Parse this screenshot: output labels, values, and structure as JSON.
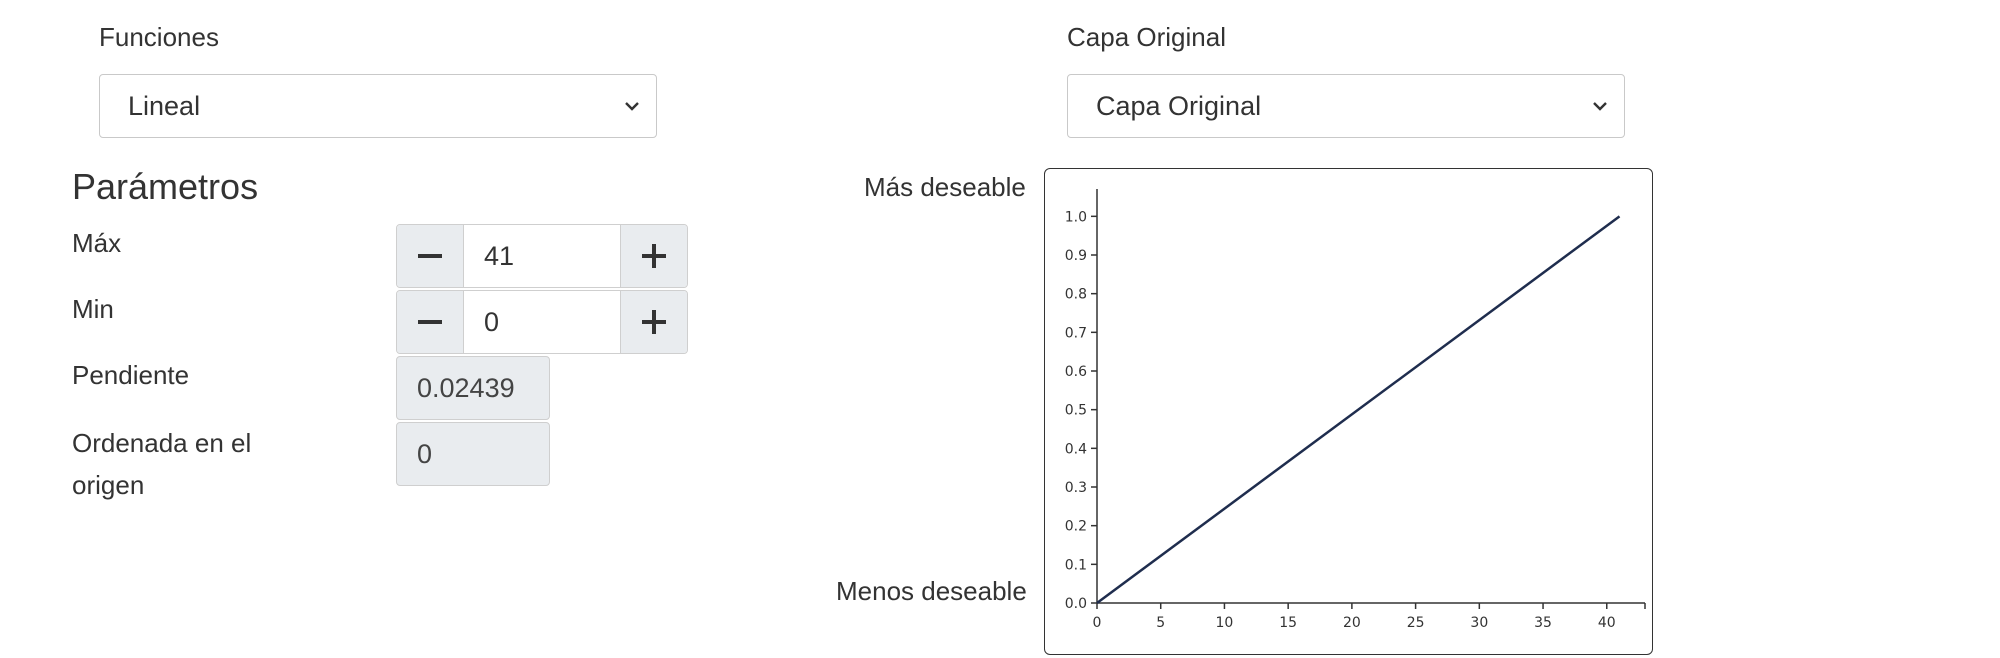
{
  "functions": {
    "label": "Funciones",
    "selected": "Lineal"
  },
  "layer": {
    "label": "Capa Original",
    "selected": "Capa Original"
  },
  "params": {
    "heading": "Parámetros",
    "max": {
      "label": "Máx",
      "value": "41",
      "minus": "−",
      "plus": "+"
    },
    "min": {
      "label": "Min",
      "value": "0",
      "minus": "−",
      "plus": "+"
    },
    "slope": {
      "label": "Pendiente",
      "value": "0.02439"
    },
    "intercept": {
      "label_line1": "Ordenada en el",
      "label_line2": "origen",
      "value": "0"
    }
  },
  "chart_labels": {
    "top": "Más deseable",
    "bottom": "Menos deseable"
  },
  "chart_data": {
    "type": "line",
    "xlim": [
      0,
      43
    ],
    "ylim": [
      0,
      1.05
    ],
    "xticks": [
      0,
      5,
      10,
      15,
      20,
      25,
      30,
      35,
      40
    ],
    "yticks": [
      "0.0",
      "0.1",
      "0.2",
      "0.3",
      "0.4",
      "0.5",
      "0.6",
      "0.7",
      "0.8",
      "0.9",
      "1.0"
    ],
    "series": [
      {
        "x": [
          0,
          41
        ],
        "y": [
          0,
          1.0
        ],
        "color": "#1f2d4e"
      }
    ],
    "grid": false
  }
}
